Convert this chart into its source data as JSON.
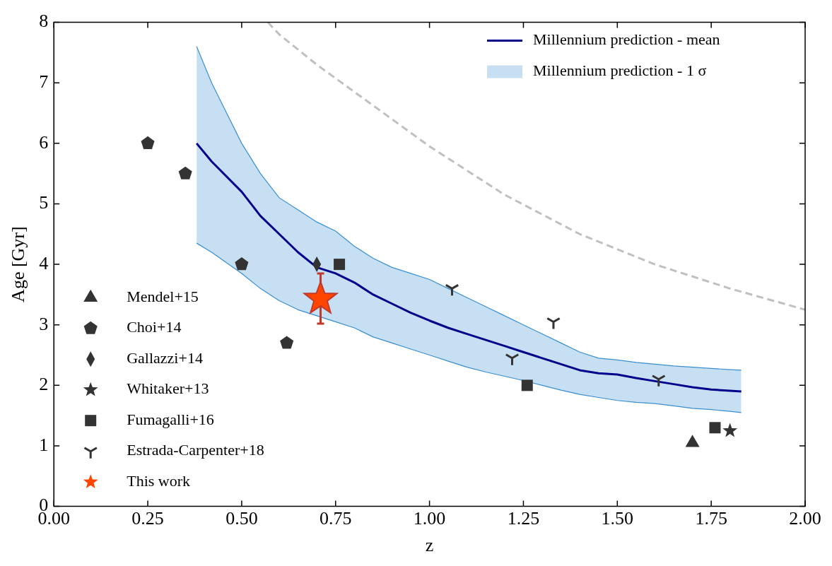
{
  "chart_data": {
    "type": "scatter",
    "xlabel": "z",
    "ylabel": "Age [Gyr]",
    "xlim": [
      0,
      2
    ],
    "ylim": [
      0,
      8
    ],
    "xticks": [
      {
        "value": 0,
        "label": "0.00"
      },
      {
        "value": 0.25,
        "label": "0.25"
      },
      {
        "value": 0.5,
        "label": "0.50"
      },
      {
        "value": 0.75,
        "label": "0.75"
      },
      {
        "value": 1,
        "label": "1.00"
      },
      {
        "value": 1.25,
        "label": "1.25"
      },
      {
        "value": 1.5,
        "label": "1.50"
      },
      {
        "value": 1.75,
        "label": "1.75"
      },
      {
        "value": 2,
        "label": "2.00"
      }
    ],
    "yticks": [
      0,
      1,
      2,
      3,
      4,
      5,
      6,
      7,
      8
    ],
    "grid": false,
    "legend": "top right",
    "series": [
      {
        "name": "Millennium prediction - 1 σ",
        "type": "area",
        "color": "#3a8fd0",
        "x": [
          0.38,
          0.42,
          0.5,
          0.55,
          0.6,
          0.65,
          0.7,
          0.75,
          0.8,
          0.85,
          0.9,
          0.95,
          1.0,
          1.05,
          1.1,
          1.15,
          1.2,
          1.25,
          1.3,
          1.35,
          1.4,
          1.45,
          1.5,
          1.55,
          1.6,
          1.65,
          1.7,
          1.75,
          1.8,
          1.83
        ],
        "values": [
          7.6,
          7.0,
          6.0,
          5.5,
          5.1,
          4.9,
          4.7,
          4.55,
          4.3,
          4.1,
          3.95,
          3.85,
          3.75,
          3.6,
          3.45,
          3.3,
          3.15,
          3.0,
          2.85,
          2.7,
          2.55,
          2.45,
          2.42,
          2.38,
          2.35,
          2.32,
          2.3,
          2.28,
          2.26,
          2.25
        ]
      },
      {
        "type": "line",
        "color": "#3a8fd0",
        "line_style": "solid",
        "marker": "none",
        "x": [
          0.38,
          0.42,
          0.5,
          0.55,
          0.6,
          0.65,
          0.7,
          0.75,
          0.8,
          0.85,
          0.9,
          0.95,
          1.0,
          1.05,
          1.1,
          1.15,
          1.2,
          1.25,
          1.3,
          1.35,
          1.4,
          1.45,
          1.5,
          1.55,
          1.6,
          1.65,
          1.7,
          1.75,
          1.8,
          1.83
        ],
        "values": [
          4.35,
          4.2,
          3.85,
          3.6,
          3.4,
          3.25,
          3.15,
          3.05,
          2.95,
          2.8,
          2.7,
          2.6,
          2.5,
          2.4,
          2.3,
          2.22,
          2.15,
          2.08,
          2.0,
          1.92,
          1.85,
          1.8,
          1.75,
          1.72,
          1.7,
          1.66,
          1.62,
          1.6,
          1.57,
          1.55
        ]
      },
      {
        "name": "Millennium prediction - mean",
        "type": "line",
        "color": "#00008b",
        "line_style": "solid",
        "marker": "none",
        "x": [
          0.38,
          0.42,
          0.5,
          0.55,
          0.6,
          0.65,
          0.7,
          0.75,
          0.8,
          0.85,
          0.9,
          0.95,
          1.0,
          1.05,
          1.1,
          1.15,
          1.2,
          1.25,
          1.3,
          1.35,
          1.4,
          1.45,
          1.5,
          1.55,
          1.6,
          1.65,
          1.7,
          1.75,
          1.8,
          1.83
        ],
        "values": [
          6.0,
          5.7,
          5.2,
          4.8,
          4.5,
          4.2,
          3.95,
          3.85,
          3.7,
          3.5,
          3.35,
          3.2,
          3.07,
          2.95,
          2.85,
          2.75,
          2.65,
          2.55,
          2.45,
          2.35,
          2.25,
          2.2,
          2.18,
          2.12,
          2.07,
          2.02,
          1.97,
          1.93,
          1.91,
          1.9
        ]
      },
      {
        "type": "line",
        "color": "#c0c0c0",
        "line_style": "dashed",
        "marker": "none",
        "x": [
          0.57,
          0.6,
          0.7,
          0.8,
          0.9,
          1.0,
          1.2,
          1.4,
          1.6,
          1.8,
          2.0
        ],
        "values": [
          8.0,
          7.8,
          7.3,
          6.85,
          6.4,
          5.95,
          5.15,
          4.5,
          4.0,
          3.6,
          3.25
        ]
      },
      {
        "name": "Mendel+15",
        "type": "scatter",
        "marker": "triangle",
        "color": "#333333",
        "x": [
          1.7
        ],
        "values": [
          1.05
        ]
      },
      {
        "name": "Choi+14",
        "type": "scatter",
        "color": "#333333",
        "x": [
          0.25,
          0.35,
          0.5,
          0.62
        ],
        "values": [
          6.0,
          5.5,
          4.0,
          2.7
        ]
      },
      {
        "name": "Gallazzi+14",
        "type": "scatter",
        "marker": "diamond",
        "color": "#333333",
        "x": [
          0.7
        ],
        "values": [
          4.0
        ]
      },
      {
        "name": "Whitaker+13",
        "type": "scatter",
        "marker": "star",
        "color": "#333333",
        "x": [
          1.8
        ],
        "values": [
          1.25
        ]
      },
      {
        "name": "Fumagalli+16",
        "type": "scatter",
        "marker": "square",
        "color": "#333333",
        "x": [
          0.76,
          1.26,
          1.76
        ],
        "values": [
          4.0,
          2.0,
          1.3
        ]
      },
      {
        "name": "Estrada-Carpenter+18",
        "type": "scatter",
        "marker": "cross",
        "color": "#333333",
        "x": [
          1.06,
          1.22,
          1.33,
          1.61
        ],
        "values": [
          3.6,
          2.45,
          3.05,
          2.1
        ]
      },
      {
        "name": "This work",
        "type": "scatter",
        "marker": "star",
        "color": "#ff4500",
        "x": [
          0.71
        ],
        "values": [
          3.43
        ],
        "errors": [
          [
            3.02,
            3.85
          ]
        ]
      }
    ]
  }
}
